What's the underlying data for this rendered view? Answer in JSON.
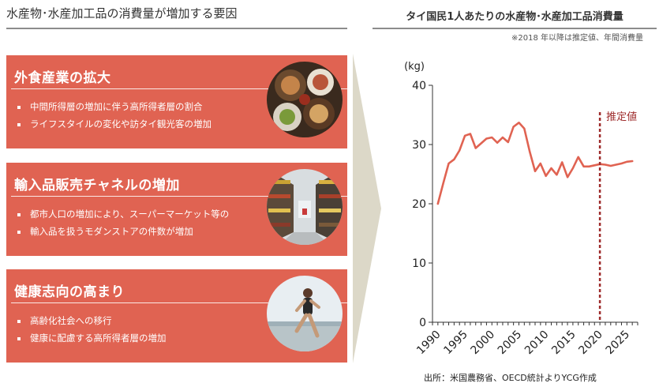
{
  "left_title": "水産物･水産加工品の消費量が増加する要因",
  "right_title": "タイ国民1人あたりの水産物･水産加工品消費量",
  "note": "※2018 年以降は推定値、年間消費量",
  "source": "出所：米国農務省、OECD統計よりYCG作成",
  "colors": {
    "card": "#e06352",
    "line": "#e06352",
    "estimate_line": "#9e2b2b",
    "arrow": "#dcd8c8"
  },
  "cards": [
    {
      "title": "外食産業の拡大",
      "bullets": [
        "中間所得層の増加に伴う高所得者層の割合",
        "ライフスタイルの変化や訪タイ観光客の増加"
      ],
      "image": "food-dishes-photo"
    },
    {
      "title": "輸入品販売チャネルの増加",
      "bullets": [
        "都市人口の増加により、スーパーマーケット等の",
        "輸入品を扱うモダンストアの件数が増加"
      ],
      "image": "supermarket-aisle-photo"
    },
    {
      "title": "健康志向の高まり",
      "bullets": [
        "高齢化社会への移行",
        "健康に配慮する高所得者層の増加"
      ],
      "image": "runner-photo"
    }
  ],
  "chart_data": {
    "type": "line",
    "title": "タイ国民1人あたりの水産物･水産加工品消費量",
    "ylabel": "(kg)",
    "ylim": [
      0,
      40
    ],
    "yticks": [
      "0",
      "10",
      "20",
      "30",
      "40"
    ],
    "xlim": [
      1989,
      2027
    ],
    "xticks": [
      "1990",
      "1995",
      "2000",
      "2005",
      "2010",
      "2015",
      "2020",
      "2025"
    ],
    "grid": false,
    "estimate_marker": {
      "x": 2020,
      "label": "推定値"
    },
    "series": [
      {
        "x": [
          1990,
          1991,
          1992,
          1993,
          1994,
          1995,
          1996,
          1997,
          1998,
          1999,
          2000,
          2001,
          2002,
          2003,
          2004,
          2005,
          2006,
          2007,
          2008,
          2009,
          2010,
          2011,
          2012,
          2013,
          2014,
          2015,
          2016,
          2017,
          2018,
          2019,
          2020,
          2021,
          2022,
          2023,
          2024,
          2025,
          2026
        ],
        "values": [
          20.0,
          23.5,
          26.8,
          27.5,
          29.0,
          31.5,
          31.8,
          29.4,
          30.2,
          31.0,
          31.2,
          30.3,
          31.2,
          30.4,
          33.0,
          33.7,
          32.7,
          28.8,
          25.5,
          26.8,
          24.7,
          26.0,
          24.9,
          27.0,
          24.5,
          26.0,
          27.9,
          26.3,
          26.3,
          26.5,
          26.7,
          26.6,
          26.4,
          26.6,
          26.8,
          27.1,
          27.2
        ]
      }
    ]
  }
}
